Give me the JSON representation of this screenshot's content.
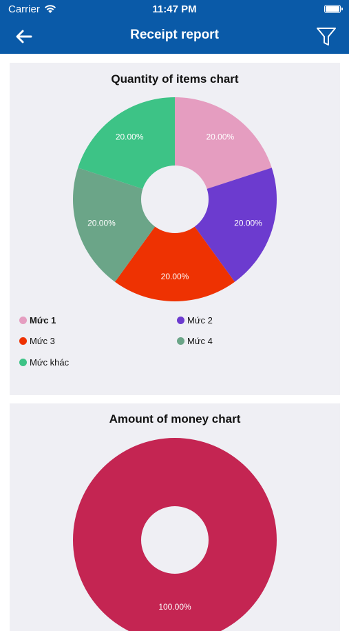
{
  "status_bar": {
    "carrier": "Carrier",
    "time": "11:47 PM"
  },
  "header": {
    "title": "Receipt report",
    "back_icon": "arrow-left-icon",
    "filter_icon": "filter-icon"
  },
  "charts": [
    {
      "title": "Quantity of items chart",
      "legend": [
        {
          "label": "Mức 1",
          "color": "#e59dc0",
          "selected": true
        },
        {
          "label": "Mức 2",
          "color": "#6c3bcf",
          "selected": false
        },
        {
          "label": "Mức 3",
          "color": "#ee3202",
          "selected": false
        },
        {
          "label": "Mức 4",
          "color": "#6ba588",
          "selected": false
        },
        {
          "label": "Mức khác",
          "color": "#3dc386",
          "selected": false
        }
      ]
    },
    {
      "title": "Amount of money chart"
    }
  ],
  "chart_data": [
    {
      "type": "pie",
      "donut": true,
      "title": "Quantity of items chart",
      "categories": [
        "Mức 1",
        "Mức 2",
        "Mức 3",
        "Mức 4",
        "Mức khác"
      ],
      "values": [
        20,
        20,
        20,
        20,
        20
      ],
      "value_labels": [
        "20.00%",
        "20.00%",
        "20.00%",
        "20.00%",
        "20.00%"
      ],
      "colors": [
        "#e59dc0",
        "#6c3bcf",
        "#ee3202",
        "#6ba588",
        "#3dc386"
      ],
      "legend": "bottom"
    },
    {
      "type": "pie",
      "donut": true,
      "title": "Amount of money chart",
      "values": [
        100
      ],
      "value_labels": [
        "100.00%"
      ],
      "colors": [
        "#c42552"
      ]
    }
  ]
}
